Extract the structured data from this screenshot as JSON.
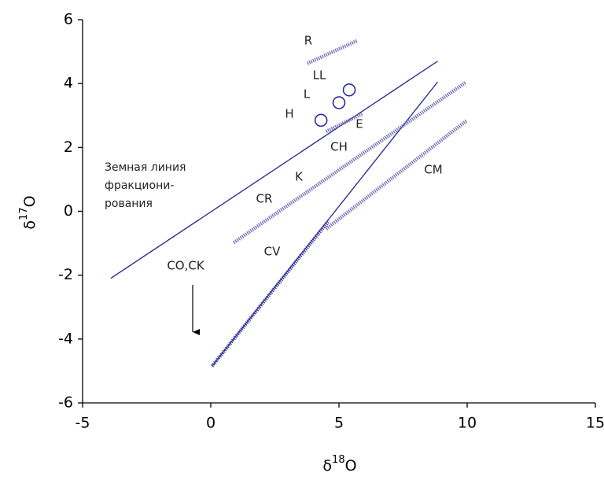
{
  "chart_data": {
    "type": "line",
    "xlabel": {
      "base": "δ",
      "sup": "18",
      "rest": "O"
    },
    "ylabel": {
      "base": "δ",
      "sup": "17",
      "rest": "O"
    },
    "xlim": [
      -5,
      15
    ],
    "xticks": [
      -5,
      0,
      5,
      10,
      15
    ],
    "ylim": [
      -6,
      6
    ],
    "yticks": [
      -6,
      -4,
      -2,
      0,
      2,
      4,
      6
    ],
    "series": [
      {
        "style": "line",
        "color": "#23238f",
        "x": [
          -3.9,
          8.85
        ],
        "values": [
          -2.1,
          4.7
        ]
      },
      {
        "style": "line",
        "color": "#23238f",
        "x": [
          0.05,
          8.85
        ],
        "values": [
          -4.85,
          4.05
        ]
      },
      {
        "style": "hatched",
        "color": "#3a3a9a",
        "x": [
          0.05,
          4.6
        ],
        "values": [
          -4.85,
          -0.3
        ]
      },
      {
        "style": "hatched",
        "color": "#6a6ab4",
        "x": [
          0.9,
          9.95
        ],
        "values": [
          -0.98,
          4.04
        ]
      },
      {
        "style": "hatched",
        "color": "#6a6ab4",
        "x": [
          4.5,
          10
        ],
        "values": [
          -0.55,
          2.85
        ]
      },
      {
        "style": "hatched",
        "color": "#6a6ab4",
        "x": [
          3.77,
          5.7
        ],
        "values": [
          4.63,
          5.34
        ]
      },
      {
        "style": "hatched",
        "color": "#6a6ab4",
        "x": [
          4.5,
          5.9
        ],
        "values": [
          2.5,
          3.05
        ]
      },
      {
        "style": "markers",
        "color": "#2a2aa8",
        "x": [
          4.3,
          5.0,
          5.4
        ],
        "values": [
          2.85,
          3.4,
          3.8
        ]
      }
    ],
    "annotations": [
      "R",
      "LL",
      "L",
      "H",
      "E",
      "CH",
      "K",
      "CR",
      "CM",
      "CV",
      "CO,CK",
      "Земная линия",
      "фракциони-",
      "рования"
    ]
  }
}
